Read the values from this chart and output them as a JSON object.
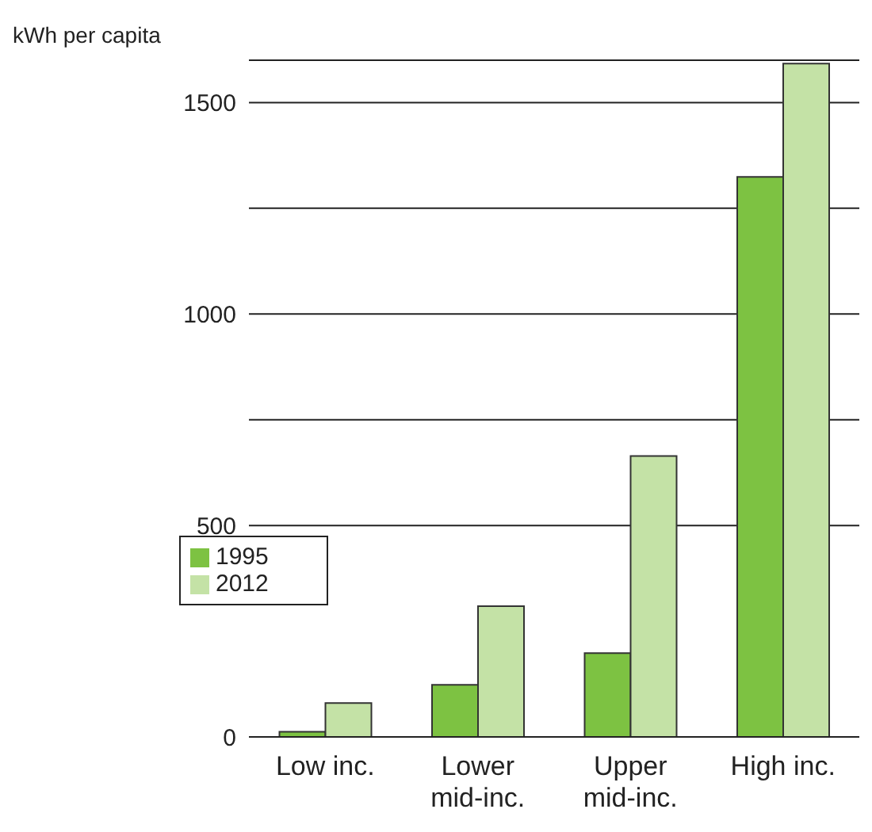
{
  "chart_data": {
    "type": "bar",
    "ylabel": "kWh per capita",
    "categories": [
      "Low inc.",
      "Lower\nmid-inc.",
      "Upper\nmid-inc.",
      "High inc."
    ],
    "series": [
      {
        "name": "1995",
        "color": "#7dc242",
        "values": [
          12,
          123,
          198,
          1324
        ]
      },
      {
        "name": "2012",
        "color": "#c4e2a6",
        "values": [
          80,
          309,
          664,
          1592
        ]
      }
    ],
    "ylim": [
      0,
      1600
    ],
    "yticks": [
      0,
      500,
      {
        "value": 750,
        "label": null
      },
      1000,
      {
        "value": 1250,
        "label": null
      },
      1500
    ],
    "grid": "y",
    "legend": "left"
  }
}
